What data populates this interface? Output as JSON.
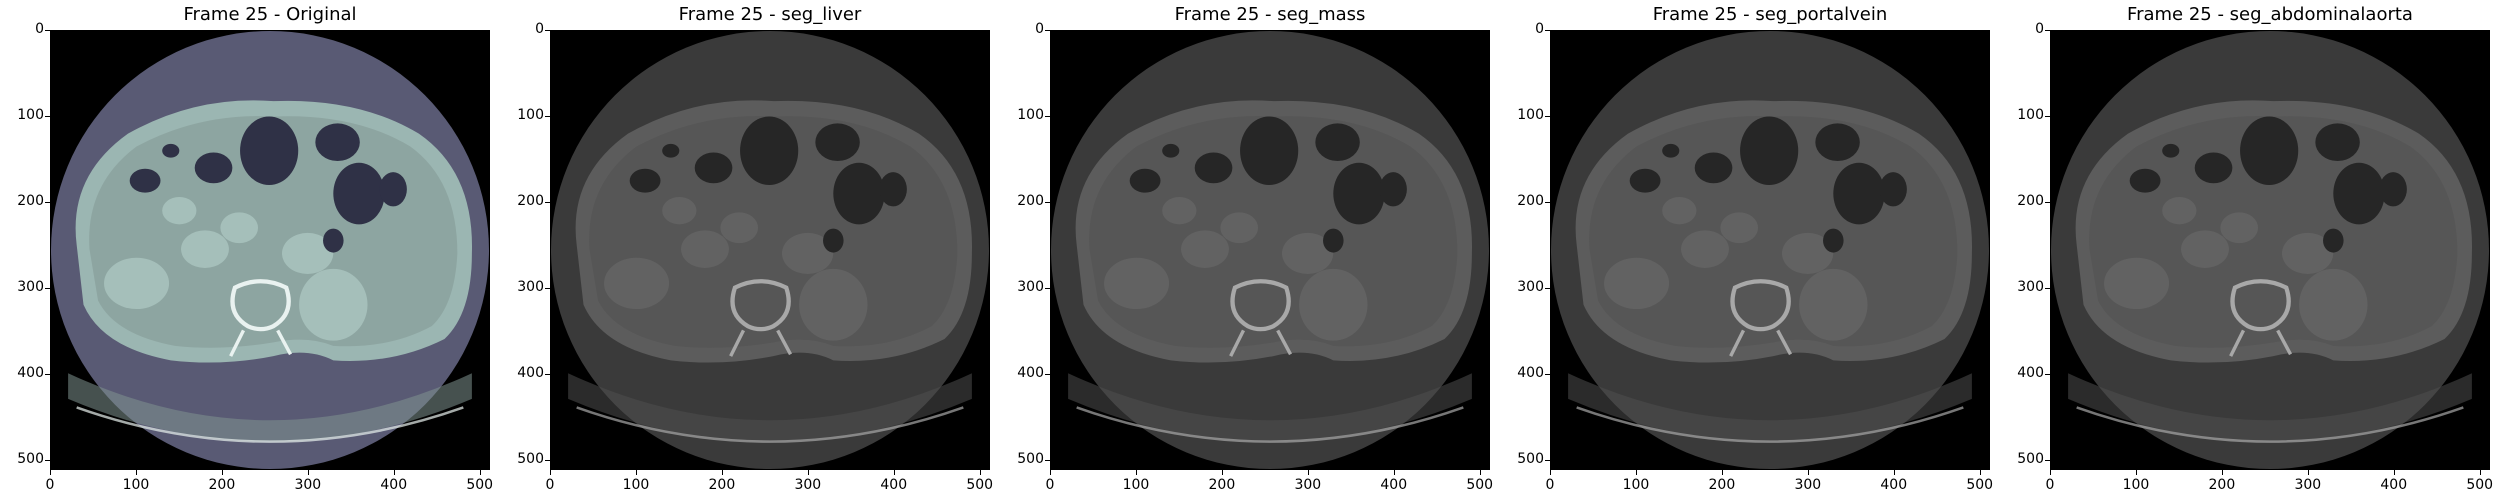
{
  "figure": {
    "panels": [
      {
        "title": "Frame 25 - Original",
        "colormap": "bone",
        "body_color": "#9bb6b2",
        "rim_color": "#595a74",
        "fat_color": "#7f9390",
        "organ_color": "#a7c2bd",
        "bone_color": "#e9f2f0",
        "gas_color": "#2f3146"
      },
      {
        "title": "Frame 25 - seg_liver",
        "colormap": "gray",
        "body_color": "#5c5c5c",
        "rim_color": "#3a3a3a",
        "fat_color": "#4f4f4f",
        "organ_color": "#646464",
        "bone_color": "#a8a8a8",
        "gas_color": "#262626"
      },
      {
        "title": "Frame 25 - seg_mass",
        "colormap": "gray",
        "body_color": "#5c5c5c",
        "rim_color": "#3a3a3a",
        "fat_color": "#4f4f4f",
        "organ_color": "#646464",
        "bone_color": "#a8a8a8",
        "gas_color": "#262626"
      },
      {
        "title": "Frame 25 - seg_portalvein",
        "colormap": "gray",
        "body_color": "#5c5c5c",
        "rim_color": "#3a3a3a",
        "fat_color": "#4f4f4f",
        "organ_color": "#646464",
        "bone_color": "#a8a8a8",
        "gas_color": "#262626"
      },
      {
        "title": "Frame 25 - seg_abdominalaorta",
        "colormap": "gray",
        "body_color": "#5c5c5c",
        "rim_color": "#3a3a3a",
        "fat_color": "#4f4f4f",
        "organ_color": "#646464",
        "bone_color": "#a8a8a8",
        "gas_color": "#262626"
      }
    ],
    "x_ticks": [
      "0",
      "100",
      "200",
      "300",
      "400",
      "500"
    ],
    "y_ticks": [
      "0",
      "100",
      "200",
      "300",
      "400",
      "500"
    ],
    "axis_range": [
      0,
      512
    ],
    "background_color": "#000000"
  }
}
